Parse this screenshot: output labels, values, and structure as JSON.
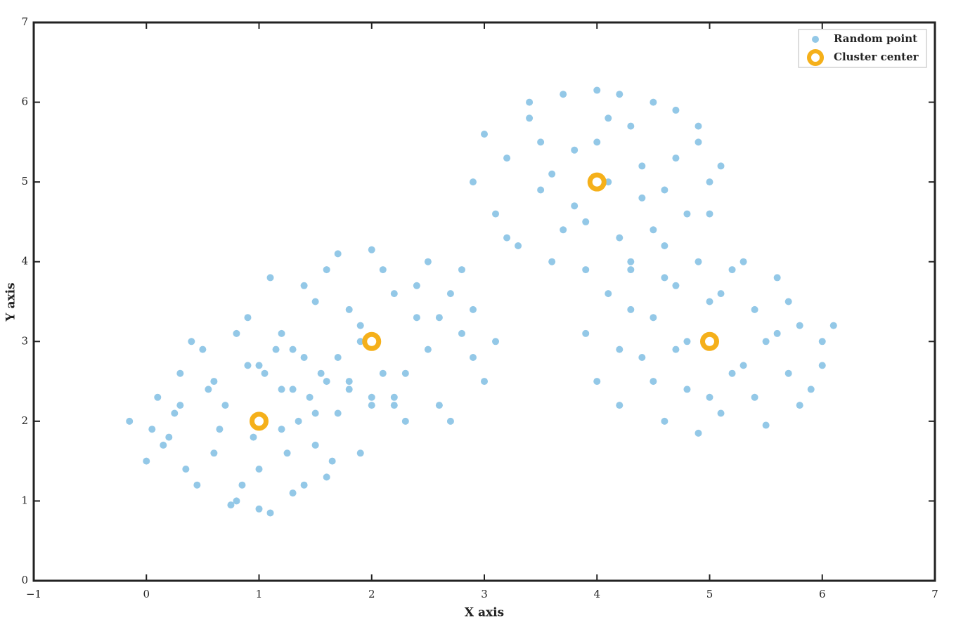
{
  "chart_data": {
    "type": "scatter",
    "x_label": "X axis",
    "y_label": "Y axis",
    "xlim": [
      -1,
      7
    ],
    "ylim": [
      0,
      7
    ],
    "xticks": [
      {
        "value": -1,
        "label": "−1"
      },
      0,
      1,
      2,
      3,
      4,
      5,
      6,
      7
    ],
    "yticks": [
      0,
      1,
      2,
      3,
      4,
      5,
      6,
      7
    ],
    "legend": "upper right",
    "series": [
      {
        "name": "Random point",
        "color": "#93c8e7",
        "marker": "dot",
        "x": [
          -0.15,
          0.0,
          0.1,
          0.2,
          0.3,
          0.45,
          0.5,
          0.6,
          0.7,
          0.8,
          0.9,
          1.0,
          1.1,
          1.2,
          1.3,
          1.4,
          1.5,
          1.6,
          1.7,
          1.8,
          0.05,
          0.25,
          0.35,
          0.55,
          0.75,
          0.95,
          1.05,
          1.25,
          1.45,
          1.65,
          0.4,
          0.65,
          0.85,
          1.15,
          1.35,
          1.55,
          0.15,
          0.6,
          1.0,
          1.4,
          0.3,
          0.8,
          1.2,
          1.9,
          2.0,
          0.9,
          1.1,
          1.3,
          1.5,
          1.7,
          1.9,
          2.1,
          2.3,
          2.5,
          2.7,
          2.9,
          3.1,
          1.0,
          1.2,
          1.4,
          1.6,
          1.8,
          2.0,
          2.2,
          2.4,
          2.6,
          2.8,
          3.0,
          1.5,
          1.8,
          2.2,
          2.5,
          2.0,
          2.3,
          1.7,
          2.6,
          2.9,
          1.3,
          2.1,
          2.4,
          2.7,
          1.9,
          2.2,
          1.6,
          2.8,
          2.9,
          3.0,
          3.1,
          3.2,
          3.3,
          3.4,
          3.5,
          3.6,
          3.7,
          3.8,
          3.9,
          4.0,
          4.1,
          4.2,
          4.3,
          4.4,
          4.5,
          4.6,
          4.7,
          4.8,
          4.9,
          5.0,
          5.1,
          3.2,
          3.5,
          3.8,
          4.1,
          4.4,
          4.7,
          5.0,
          3.4,
          3.7,
          4.0,
          4.3,
          4.6,
          4.9,
          3.6,
          3.9,
          4.2,
          4.5,
          3.9,
          4.0,
          4.1,
          4.2,
          4.3,
          4.4,
          4.5,
          4.6,
          4.7,
          4.8,
          4.9,
          5.0,
          5.1,
          5.2,
          5.3,
          5.4,
          5.5,
          5.6,
          5.7,
          5.8,
          5.9,
          6.0,
          6.1,
          4.2,
          4.5,
          4.8,
          5.1,
          5.4,
          5.7,
          6.0,
          4.3,
          4.6,
          4.9,
          5.2,
          5.5,
          5.8,
          4.7,
          5.0,
          5.3,
          5.6
        ],
        "y": [
          2.0,
          1.5,
          2.3,
          1.8,
          2.6,
          1.2,
          2.9,
          1.6,
          2.2,
          1.0,
          2.7,
          1.4,
          0.85,
          2.4,
          1.1,
          2.8,
          1.7,
          1.3,
          2.1,
          2.5,
          1.9,
          2.1,
          1.4,
          2.4,
          0.95,
          1.8,
          2.6,
          1.6,
          2.3,
          1.5,
          3.0,
          1.9,
          1.2,
          2.9,
          2.0,
          2.6,
          1.7,
          2.5,
          0.9,
          1.2,
          2.2,
          3.1,
          1.9,
          1.6,
          2.2,
          3.3,
          3.8,
          2.9,
          3.5,
          4.1,
          3.2,
          3.9,
          2.6,
          4.0,
          3.6,
          2.8,
          3.0,
          2.7,
          3.1,
          3.7,
          2.5,
          3.4,
          4.15,
          2.3,
          3.3,
          2.2,
          3.9,
          2.5,
          2.1,
          2.4,
          3.6,
          2.9,
          2.3,
          2.0,
          2.8,
          3.3,
          3.4,
          2.4,
          2.6,
          3.7,
          2.0,
          3.0,
          2.2,
          3.9,
          3.1,
          5.0,
          5.6,
          4.6,
          5.3,
          4.2,
          5.8,
          4.9,
          4.0,
          6.1,
          5.4,
          4.5,
          6.15,
          5.0,
          4.3,
          5.7,
          4.8,
          6.0,
          4.2,
          5.3,
          4.6,
          5.5,
          5.0,
          5.2,
          4.3,
          5.5,
          4.7,
          5.8,
          5.2,
          5.9,
          4.6,
          6.0,
          4.4,
          5.5,
          4.0,
          4.9,
          5.7,
          5.1,
          3.9,
          6.1,
          4.4,
          3.1,
          2.5,
          3.6,
          2.2,
          3.9,
          2.8,
          3.3,
          2.0,
          3.7,
          2.4,
          4.0,
          3.5,
          2.1,
          3.9,
          2.7,
          3.4,
          1.95,
          3.8,
          2.6,
          3.2,
          2.4,
          3.0,
          3.2,
          2.9,
          2.5,
          3.0,
          3.6,
          2.3,
          3.5,
          2.7,
          3.4,
          3.8,
          1.85,
          2.6,
          3.0,
          2.2,
          2.9,
          2.3,
          4.0,
          3.1
        ]
      },
      {
        "name": "Cluster center",
        "color": "#f5b01a",
        "marker": "ring",
        "x": [
          1,
          2,
          4,
          5
        ],
        "y": [
          2,
          3,
          5,
          3
        ]
      }
    ]
  }
}
